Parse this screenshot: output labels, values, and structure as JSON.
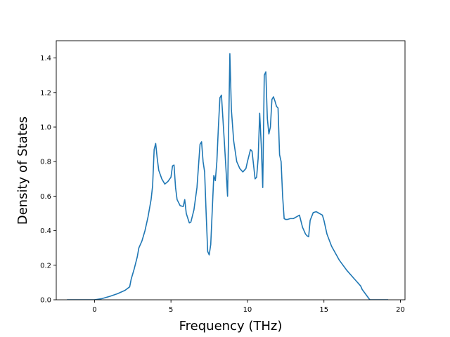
{
  "chart_data": {
    "type": "line",
    "title": "",
    "xlabel": "Frequency (THz)",
    "ylabel": "Density of States",
    "xlim": [
      -2.5,
      20.3
    ],
    "ylim": [
      0.0,
      1.5
    ],
    "xticks": [
      0,
      5,
      10,
      15,
      20
    ],
    "yticks": [
      0.0,
      0.2,
      0.4,
      0.6,
      0.8,
      1.0,
      1.2,
      1.4
    ],
    "ytick_format": 1,
    "grid": false,
    "line_color": "#1f77b4",
    "series": [
      {
        "x": [
          -1.8,
          -1.0,
          0.0,
          0.5,
          1.0,
          1.5,
          2.0,
          2.3,
          2.4,
          2.6,
          2.8,
          2.9,
          3.1,
          3.3,
          3.5,
          3.7,
          3.8,
          3.9,
          4.0,
          4.1,
          4.2,
          4.4,
          4.6,
          4.8,
          5.0,
          5.1,
          5.2,
          5.3,
          5.4,
          5.6,
          5.8,
          5.9,
          6.0,
          6.2,
          6.3,
          6.5,
          6.7,
          6.9,
          7.0,
          7.1,
          7.2,
          7.3,
          7.4,
          7.5,
          7.6,
          7.8,
          7.9,
          8.0,
          8.1,
          8.2,
          8.3,
          8.5,
          8.7,
          8.85,
          8.95,
          9.1,
          9.3,
          9.5,
          9.7,
          9.9,
          10.0,
          10.2,
          10.3,
          10.5,
          10.6,
          10.7,
          10.8,
          10.9,
          11.0,
          11.1,
          11.2,
          11.3,
          11.4,
          11.5,
          11.6,
          11.7,
          11.8,
          11.9,
          12.0,
          12.1,
          12.2,
          12.3,
          12.4,
          12.5,
          12.6,
          12.8,
          13.0,
          13.2,
          13.4,
          13.6,
          13.8,
          13.9,
          14.0,
          14.1,
          14.3,
          14.5,
          14.7,
          14.9,
          15.0,
          15.2,
          15.5,
          16.0,
          16.5,
          17.0,
          17.2,
          17.4,
          17.5,
          18.0,
          19.2
        ],
        "y": [
          0.0,
          0.0,
          0.0,
          0.007,
          0.02,
          0.035,
          0.055,
          0.075,
          0.12,
          0.18,
          0.25,
          0.3,
          0.34,
          0.4,
          0.48,
          0.58,
          0.66,
          0.87,
          0.905,
          0.82,
          0.75,
          0.7,
          0.67,
          0.685,
          0.71,
          0.775,
          0.78,
          0.65,
          0.58,
          0.545,
          0.54,
          0.58,
          0.5,
          0.445,
          0.45,
          0.52,
          0.65,
          0.9,
          0.915,
          0.8,
          0.74,
          0.5,
          0.28,
          0.26,
          0.32,
          0.72,
          0.69,
          0.8,
          1.0,
          1.17,
          1.185,
          0.9,
          0.6,
          1.425,
          1.1,
          0.92,
          0.8,
          0.76,
          0.74,
          0.76,
          0.8,
          0.87,
          0.86,
          0.7,
          0.71,
          0.82,
          1.08,
          0.9,
          0.65,
          1.3,
          1.32,
          1.05,
          0.96,
          1.0,
          1.16,
          1.175,
          1.15,
          1.12,
          1.11,
          0.84,
          0.8,
          0.6,
          0.47,
          0.465,
          0.465,
          0.47,
          0.47,
          0.48,
          0.49,
          0.42,
          0.38,
          0.37,
          0.365,
          0.46,
          0.505,
          0.51,
          0.5,
          0.49,
          0.46,
          0.38,
          0.31,
          0.23,
          0.17,
          0.12,
          0.1,
          0.08,
          0.06,
          0.0,
          0.0
        ]
      }
    ]
  }
}
